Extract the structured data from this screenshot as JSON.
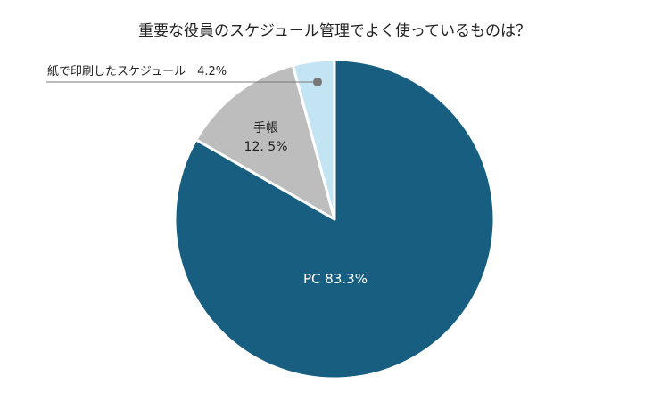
{
  "chart_data": {
    "type": "pie",
    "title": "重要な役員のスケジュール管理でよく使っているものは？",
    "slices": [
      {
        "name": "PC",
        "value": 83.3,
        "label": "PC  83.3%",
        "color": "#175e80"
      },
      {
        "name": "手帳",
        "value": 12.5,
        "value_label": "12. 5%",
        "color": "#bdbdbd"
      },
      {
        "name": "紙で印刷したスケジュール",
        "value": 4.2,
        "label": "紙で印刷したスケジュール　4.2%",
        "color": "#c3e4f3"
      }
    ],
    "start": "top",
    "direction": "clockwise",
    "legend": "none"
  }
}
